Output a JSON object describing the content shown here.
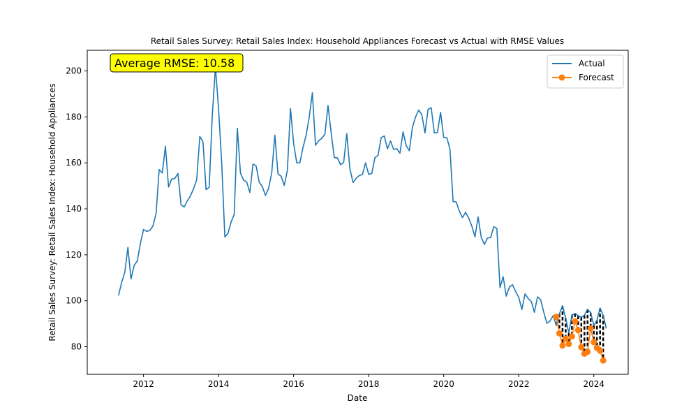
{
  "chart_data": {
    "type": "line",
    "title": "Retail Sales Survey: Retail Sales Index: Household Appliances Forecast vs Actual with RMSE Values",
    "xlabel": "Date",
    "ylabel": "Retail Sales Survey: Retail Sales Index: Household Appliances",
    "x_ticks": [
      "2012",
      "2014",
      "2016",
      "2018",
      "2020",
      "2022",
      "2024"
    ],
    "y_ticks": [
      80,
      100,
      120,
      140,
      160,
      180,
      200
    ],
    "ylim": [
      68,
      209
    ],
    "xlim": [
      "2010-07",
      "2024-12"
    ],
    "annotation": "Average RMSE: 10.58",
    "legend": {
      "placement": "top-right",
      "entries": [
        "Actual",
        "Forecast"
      ]
    },
    "colors": {
      "actual": "#1f77b4",
      "forecast": "#ff7f0e",
      "error": "#000000",
      "annotation_bg": "#ffff00"
    },
    "series": [
      {
        "name": "Actual",
        "start": "2011-05",
        "step": "month",
        "values": [
          102.3,
          108.0,
          112.4,
          123.2,
          109.5,
          115.4,
          117.3,
          125.0,
          131.0,
          130.2,
          130.6,
          132.5,
          137.8,
          157.1,
          155.6,
          167.3,
          149.5,
          153.0,
          153.2,
          155.4,
          141.8,
          140.8,
          143.5,
          145.6,
          148.8,
          152.6,
          171.5,
          169.2,
          148.4,
          149.4,
          181.0,
          201.5,
          183.6,
          160.0,
          127.8,
          129.3,
          134.2,
          137.6,
          175.1,
          155.5,
          152.5,
          151.7,
          147.1,
          159.5,
          158.7,
          151.5,
          149.7,
          145.8,
          148.9,
          155.7,
          172.1,
          155.2,
          154.2,
          150.2,
          156.7,
          183.7,
          168.5,
          160.0,
          160.1,
          166.7,
          172.0,
          180.0,
          190.5,
          167.7,
          169.6,
          170.7,
          172.5,
          185.0,
          173.1,
          162.3,
          162.2,
          159.2,
          160.2,
          172.7,
          157.4,
          151.5,
          153.3,
          154.5,
          154.9,
          160.0,
          155.0,
          155.4,
          162.3,
          163.3,
          171.0,
          171.7,
          166.1,
          169.5,
          165.8,
          166.2,
          164.2,
          173.5,
          167.5,
          165.3,
          175.5,
          180.0,
          183.0,
          181.0,
          173.0,
          183.3,
          184.0,
          173.0,
          173.2,
          182.0,
          171.0,
          171.0,
          166.0,
          143.2,
          143.0,
          139.0,
          136.2,
          138.5,
          136.0,
          132.5,
          127.8,
          136.5,
          127.6,
          124.5,
          127.3,
          127.5,
          132.2,
          131.5,
          105.7,
          110.5,
          102.0,
          106.0,
          107.0,
          104.0,
          101.5,
          96.2,
          103.0,
          101.0,
          99.7,
          95.0,
          101.7,
          100.5,
          95.0,
          90.2,
          91.2,
          93.5,
          89.3,
          94.3,
          97.8,
          92.5,
          86.0,
          93.8,
          94.5,
          93.5,
          92.8,
          93.7,
          96.3,
          94.8,
          89.3,
          91.5,
          96.8,
          93.7,
          88.0
        ]
      },
      {
        "name": "Forecast",
        "start": "2023-01",
        "step": "month",
        "values": [
          93.0,
          85.8,
          80.5,
          83.5,
          81.2,
          84.5,
          91.0,
          87.2,
          79.8,
          77.0,
          77.8,
          88.0,
          82.0,
          79.5,
          78.3,
          74.0
        ]
      }
    ]
  }
}
